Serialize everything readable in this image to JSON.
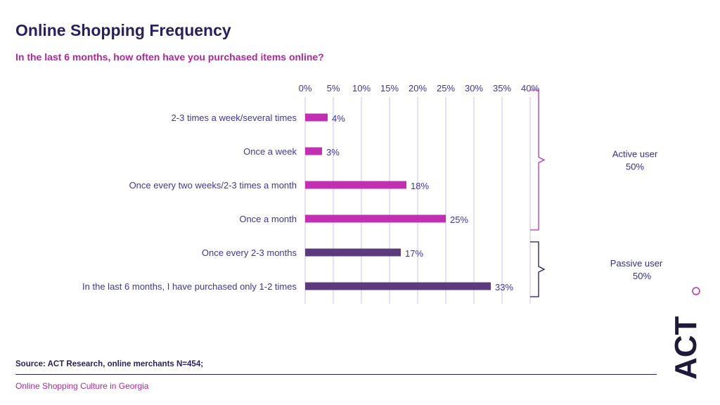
{
  "title": "Online Shopping Frequency",
  "subtitle": "In the last 6 months, how often have you purchased items online?",
  "source": "Source: ACT Research, online merchants N=454;",
  "footer": "Online Shopping Culture in Georgia",
  "logo_text": "ACT",
  "colors": {
    "active": "#c12fb3",
    "passive": "#5b3b7e",
    "grid": "#c9c3ee",
    "text": "#3f35a0"
  },
  "chart_data": {
    "type": "bar",
    "orientation": "horizontal",
    "xlim": [
      0,
      40
    ],
    "ticks": [
      "0%",
      "5%",
      "10%",
      "15%",
      "20%",
      "25%",
      "30%",
      "35%",
      "40%"
    ],
    "tick_values": [
      0,
      5,
      10,
      15,
      20,
      25,
      30,
      35,
      40
    ],
    "categories": [
      "2-3 times a week/several times",
      "Once a week",
      "Once every two weeks/2-3 times a month",
      "Once a month",
      "Once every 2-3 months",
      "In the last 6 months, I have purchased only 1-2 times"
    ],
    "values": [
      4,
      3,
      18,
      25,
      17,
      33
    ],
    "value_labels": [
      "4%",
      "3%",
      "18%",
      "25%",
      "17%",
      "33%"
    ],
    "groups": [
      {
        "label_line1": "Active user",
        "label_line2": "50%",
        "from": 0,
        "to": 3,
        "color": "#c12fb3"
      },
      {
        "label_line1": "Passive user",
        "label_line2": "50%",
        "from": 4,
        "to": 5,
        "color": "#1e1a5c"
      }
    ]
  }
}
